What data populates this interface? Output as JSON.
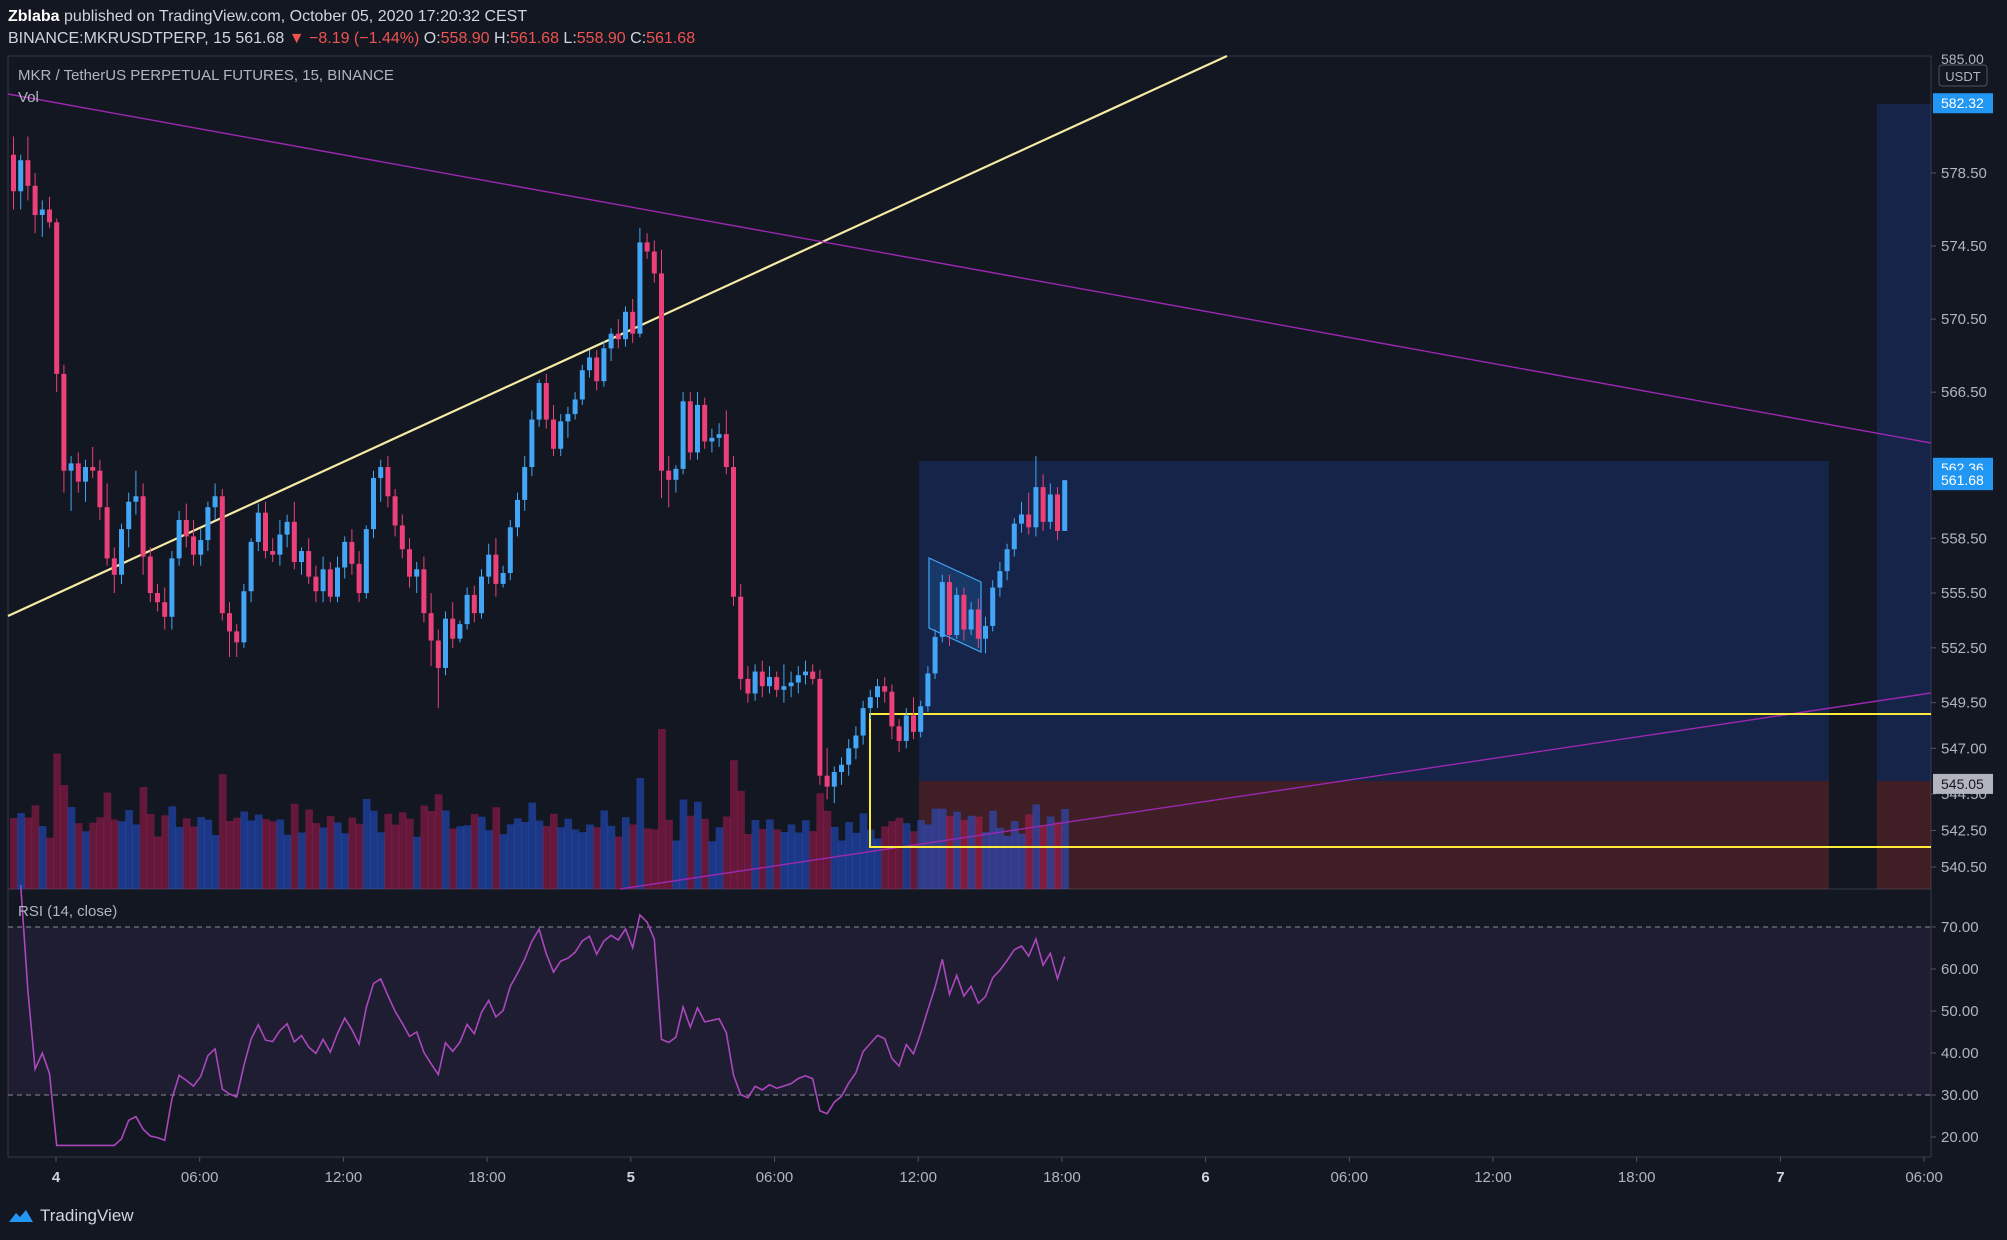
{
  "header": {
    "author": "Zblaba",
    "published": "published on TradingView.com, October 05, 2020 17:20:32 CEST",
    "symbol": "BINANCE:MKRUSDTPERP, 15",
    "last": "561.68",
    "change": "▼ −8.19 (−1.44%)",
    "o_label": "O:",
    "o": "558.90",
    "h_label": "H:",
    "h": "561.68",
    "l_label": "L:",
    "l": "558.90",
    "c_label": "C:",
    "c": "561.68"
  },
  "footer": {
    "brand": "TradingView"
  },
  "chart_data": {
    "type": "candlestick",
    "title": "MKR / TetherUS PERPETUAL FUTURES, 15, BINANCE",
    "volume_label": "Vol",
    "rsi_label": "RSI (14, close)",
    "currency": "USDT",
    "y_top_label": "585.00",
    "y_ticks": [
      578.5,
      574.5,
      570.5,
      566.5,
      558.5,
      555.5,
      552.5,
      549.5,
      547.0,
      544.5,
      542.5,
      540.5
    ],
    "rsi_ticks": [
      70,
      60,
      50,
      40,
      30,
      20
    ],
    "x_labels": [
      "4",
      "06:00",
      "12:00",
      "18:00",
      "5",
      "06:00",
      "12:00",
      "18:00",
      "6",
      "06:00",
      "12:00",
      "18:00",
      "7",
      "06:00"
    ],
    "price_badges": [
      {
        "value": "582.32",
        "color": "#2196f3"
      },
      {
        "value": "562.36",
        "color": "#2196f3"
      },
      {
        "value": "561.68",
        "color": "#2196f3"
      },
      {
        "value": "545.05",
        "color": "#b2b5be"
      }
    ],
    "colors": {
      "up": "#42a5f5",
      "down": "#ec407a",
      "rsi": "#ab47bc",
      "trend_up": "#f5eba4",
      "trend_down": "#9c27b0",
      "zone": "#ffeb3b"
    },
    "candles": [
      [
        579.5,
        580.5,
        576.5,
        577.5
      ],
      [
        577.5,
        579.5,
        576.5,
        579.2
      ],
      [
        579.2,
        580.5,
        577,
        577.8
      ],
      [
        577.8,
        578.5,
        575.2,
        576.2
      ],
      [
        576.2,
        577,
        575,
        576.5
      ],
      [
        576.5,
        577.2,
        575.5,
        575.8
      ],
      [
        575.8,
        576,
        566.5,
        567.5
      ],
      [
        567.5,
        568,
        561,
        562.2
      ],
      [
        562.2,
        563,
        560,
        562.6
      ],
      [
        562.6,
        563.2,
        561,
        561.6
      ],
      [
        561.6,
        562.8,
        560.5,
        562.4
      ],
      [
        562.4,
        563.5,
        561.8,
        562.2
      ],
      [
        562.2,
        562.8,
        559.5,
        560.2
      ],
      [
        560.2,
        561.5,
        557,
        557.4
      ],
      [
        557.4,
        558,
        555.5,
        556.5
      ],
      [
        556.5,
        559.3,
        556,
        559
      ],
      [
        559,
        561,
        558,
        560.5
      ],
      [
        560.5,
        562.2,
        559.8,
        560.8
      ],
      [
        560.8,
        561.5,
        556.5,
        557.5
      ],
      [
        557.5,
        558,
        555,
        555.5
      ],
      [
        555.5,
        556,
        554.5,
        555
      ],
      [
        555,
        555.8,
        553.5,
        554.2
      ],
      [
        554.2,
        557.8,
        553.5,
        557.4
      ],
      [
        557.4,
        560,
        557,
        559.5
      ],
      [
        559.5,
        560.4,
        558,
        558.6
      ],
      [
        558.6,
        559.5,
        557,
        557.6
      ],
      [
        557.6,
        559,
        557,
        558.4
      ],
      [
        558.4,
        560.5,
        557.8,
        560.2
      ],
      [
        560.2,
        561.5,
        559.5,
        560.8
      ],
      [
        560.8,
        561.2,
        554,
        554.4
      ],
      [
        554.4,
        555,
        552,
        553.4
      ],
      [
        553.4,
        553.8,
        552,
        552.8
      ],
      [
        552.8,
        556,
        552.5,
        555.6
      ],
      [
        555.6,
        558.5,
        555,
        558.3
      ],
      [
        558.3,
        560.4,
        557.8,
        559.9
      ],
      [
        559.9,
        560.5,
        557.4,
        557.8
      ],
      [
        557.8,
        558.5,
        557.2,
        557.6
      ],
      [
        557.6,
        559.5,
        557,
        558.7
      ],
      [
        558.7,
        559.8,
        558,
        559.4
      ],
      [
        559.4,
        560.5,
        556.8,
        557.2
      ],
      [
        557.2,
        558,
        556.5,
        557.8
      ],
      [
        557.8,
        558.5,
        556,
        556.4
      ],
      [
        556.4,
        557,
        555,
        555.6
      ],
      [
        555.6,
        557.5,
        555,
        556.8
      ],
      [
        556.8,
        557.2,
        555,
        555.3
      ],
      [
        555.3,
        557.5,
        555,
        556.9
      ],
      [
        556.9,
        558.6,
        556.3,
        558.3
      ],
      [
        558.3,
        559,
        556.5,
        557.1
      ],
      [
        557.1,
        557.8,
        555,
        555.5
      ],
      [
        555.5,
        559.2,
        555.2,
        559
      ],
      [
        559,
        562.2,
        558.5,
        561.8
      ],
      [
        561.8,
        562.8,
        560.5,
        562.4
      ],
      [
        562.4,
        563,
        560.2,
        560.8
      ],
      [
        560.8,
        561.2,
        558.6,
        559.2
      ],
      [
        559.2,
        559.8,
        557.4,
        557.9
      ],
      [
        557.9,
        558.5,
        555.8,
        556.4
      ],
      [
        556.4,
        557.2,
        555.5,
        556.8
      ],
      [
        556.8,
        557.5,
        553.9,
        554.4
      ],
      [
        554.4,
        555.5,
        551.5,
        552.9
      ],
      [
        552.9,
        553.5,
        549.2,
        551.4
      ],
      [
        551.4,
        554.5,
        551,
        554.1
      ],
      [
        554.1,
        555,
        552.5,
        553
      ],
      [
        553,
        554,
        552.8,
        553.8
      ],
      [
        553.8,
        555.8,
        553.5,
        555.4
      ],
      [
        555.4,
        555.9,
        553.9,
        554.4
      ],
      [
        554.4,
        556.8,
        554.1,
        556.4
      ],
      [
        556.4,
        558.2,
        556,
        557.6
      ],
      [
        557.6,
        558.5,
        555.3,
        556
      ],
      [
        556,
        557,
        555.8,
        556.6
      ],
      [
        556.6,
        559.5,
        556.2,
        559.1
      ],
      [
        559.1,
        561,
        558.6,
        560.6
      ],
      [
        560.6,
        563,
        560,
        562.4
      ],
      [
        562.4,
        565.5,
        561.9,
        565
      ],
      [
        565,
        567.2,
        564.6,
        567
      ],
      [
        567,
        567.5,
        564.5,
        565
      ],
      [
        565,
        565.8,
        563,
        563.4
      ],
      [
        563.4,
        565.3,
        563,
        564.9
      ],
      [
        564.9,
        565.7,
        564,
        565.3
      ],
      [
        565.3,
        566.5,
        565,
        566.1
      ],
      [
        566.1,
        568,
        565.8,
        567.7
      ],
      [
        567.7,
        568.8,
        567.3,
        568.4
      ],
      [
        568.4,
        568.8,
        566.6,
        567.1
      ],
      [
        567.1,
        569.3,
        566.8,
        568.9
      ],
      [
        568.9,
        570,
        568.2,
        569.7
      ],
      [
        569.7,
        570.5,
        568.9,
        569.4
      ],
      [
        569.4,
        571.2,
        569,
        570.9
      ],
      [
        570.9,
        571.6,
        569.2,
        569.7
      ],
      [
        569.7,
        575.5,
        569.5,
        574.7
      ],
      [
        574.7,
        575.2,
        573.8,
        574.2
      ],
      [
        574.2,
        574.8,
        572.5,
        573
      ],
      [
        573,
        574.3,
        560.7,
        562.2
      ],
      [
        562.2,
        563,
        560.2,
        561.7
      ],
      [
        561.7,
        562.5,
        561,
        562.3
      ],
      [
        562.3,
        566.5,
        562,
        566
      ],
      [
        566,
        566.5,
        562.8,
        563.2
      ],
      [
        563.2,
        566.5,
        562.8,
        565.8
      ],
      [
        565.8,
        566.2,
        563.4,
        563.8
      ],
      [
        563.8,
        564.5,
        563.2,
        564
      ],
      [
        564,
        564.8,
        563.5,
        564.2
      ],
      [
        564.2,
        565.5,
        562,
        562.4
      ],
      [
        562.4,
        563,
        554.8,
        555.3
      ],
      [
        555.3,
        556,
        550.2,
        550.8
      ],
      [
        550.8,
        551.5,
        549.5,
        550
      ],
      [
        550,
        551.6,
        549.6,
        551.2
      ],
      [
        551.2,
        551.8,
        549.8,
        550.4
      ],
      [
        550.4,
        551.5,
        550,
        550.9
      ],
      [
        550.9,
        551.2,
        549.8,
        550.2
      ],
      [
        550.2,
        551.6,
        549.5,
        550.4
      ],
      [
        550.4,
        551.2,
        549.8,
        550.6
      ],
      [
        550.6,
        551.5,
        550,
        551
      ],
      [
        551,
        551.8,
        550.5,
        551.2
      ],
      [
        551.2,
        551.6,
        550.5,
        550.8
      ],
      [
        550.8,
        551.3,
        545,
        545.5
      ],
      [
        545.5,
        547,
        544.2,
        544.9
      ],
      [
        544.9,
        546,
        544,
        545.7
      ],
      [
        545.7,
        546.5,
        545,
        546.1
      ],
      [
        546.1,
        547.5,
        545.5,
        547
      ],
      [
        547,
        548.2,
        546.4,
        547.7
      ],
      [
        547.7,
        549.6,
        547.2,
        549.2
      ],
      [
        549.2,
        550.2,
        548.6,
        549.8
      ],
      [
        549.8,
        550.8,
        549.2,
        550.4
      ],
      [
        550.4,
        550.9,
        549.5,
        550.1
      ],
      [
        550.1,
        550.5,
        547.5,
        548.2
      ],
      [
        548.2,
        548.6,
        546.8,
        547.4
      ],
      [
        547.4,
        549.2,
        547,
        548.8
      ],
      [
        548.8,
        549.8,
        547.5,
        547.9
      ],
      [
        547.9,
        549.6,
        547.6,
        549.3
      ],
      [
        549.3,
        551.5,
        549,
        551.1
      ],
      [
        551.1,
        553.5,
        550.8,
        553.1
      ],
      [
        553.1,
        556.5,
        552.8,
        556.1
      ],
      [
        556.1,
        556.5,
        552.6,
        553.2
      ],
      [
        553.2,
        555.8,
        553,
        555.4
      ],
      [
        555.4,
        555.8,
        552.9,
        553.5
      ],
      [
        553.5,
        555,
        553.2,
        554.6
      ],
      [
        554.6,
        555.2,
        552.5,
        553
      ],
      [
        553,
        554.2,
        552.2,
        553.7
      ],
      [
        553.7,
        556.2,
        553.4,
        555.8
      ],
      [
        555.8,
        557.2,
        555.3,
        556.7
      ],
      [
        556.7,
        558.2,
        556.2,
        557.9
      ],
      [
        557.9,
        559.6,
        557.5,
        559.3
      ],
      [
        559.3,
        560.5,
        558.8,
        559.8
      ],
      [
        559.8,
        561,
        558.7,
        559.1
      ],
      [
        559.1,
        563,
        558.6,
        561.3
      ],
      [
        561.3,
        562,
        558.9,
        559.4
      ],
      [
        559.4,
        561.5,
        559,
        560.9
      ],
      [
        560.9,
        561.3,
        558.4,
        558.9
      ],
      [
        558.9,
        561.68,
        558.9,
        561.68
      ]
    ]
  }
}
